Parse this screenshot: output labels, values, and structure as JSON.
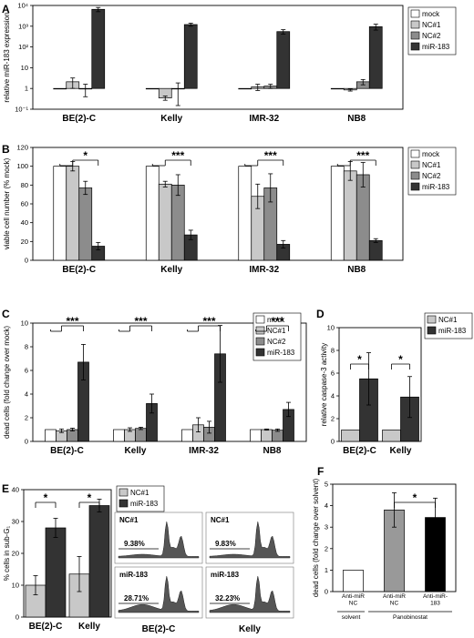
{
  "colors": {
    "mock": "#ffffff",
    "nc1": "#c8c8c8",
    "nc2": "#8c8c8c",
    "mir183": "#333333",
    "black": "#000000"
  },
  "chart_data": [
    {
      "panel": "A",
      "type": "bar",
      "ylabel": "relative miR-183 expression",
      "yscale": "log",
      "ylim": [
        0.1,
        10000
      ],
      "yticks": [
        "10⁴",
        "10³",
        "10²",
        "10",
        "1",
        "10⁻¹"
      ],
      "categories": [
        "BE(2)-C",
        "Kelly",
        "IMR-32",
        "NB8"
      ],
      "series": [
        {
          "name": "mock",
          "values": [
            1,
            1,
            1,
            1
          ],
          "err": [
            0,
            0,
            0,
            0
          ]
        },
        {
          "name": "NC#1",
          "values": [
            2.1,
            0.35,
            1.2,
            0.85
          ],
          "err": [
            1.1,
            0.08,
            0.4,
            0.1
          ]
        },
        {
          "name": "NC#2",
          "values": [
            1.0,
            1.0,
            1.3,
            2.1
          ],
          "err": [
            0.6,
            0.85,
            0.3,
            0.6
          ]
        },
        {
          "name": "miR-183",
          "values": [
            6500,
            1200,
            550,
            950
          ],
          "err": [
            1500,
            200,
            130,
            300
          ]
        }
      ]
    },
    {
      "panel": "B",
      "type": "bar",
      "ylabel": "viable cell number (% mock)",
      "ylim": [
        0,
        120
      ],
      "yticks": [
        "120",
        "100",
        "80",
        "60",
        "40",
        "20",
        "0"
      ],
      "categories": [
        "BE(2)-C",
        "Kelly",
        "IMR-32",
        "NB8"
      ],
      "series": [
        {
          "name": "mock",
          "values": [
            100,
            100,
            100,
            100
          ],
          "err": [
            0,
            0,
            0,
            0
          ]
        },
        {
          "name": "NC#1",
          "values": [
            100,
            81,
            68,
            95
          ],
          "err": [
            5,
            3,
            13,
            10
          ]
        },
        {
          "name": "NC#2",
          "values": [
            77,
            80,
            77,
            91
          ],
          "err": [
            7,
            11,
            15,
            13
          ]
        },
        {
          "name": "miR-183",
          "values": [
            15,
            27,
            17,
            21
          ],
          "err": [
            4,
            5,
            4,
            2
          ]
        }
      ],
      "significance": [
        "*",
        "***",
        "***",
        "***"
      ]
    },
    {
      "panel": "C",
      "type": "bar",
      "ylabel": "dead cells (fold change over mock)",
      "ylim": [
        0,
        10
      ],
      "yticks": [
        "10",
        "8",
        "6",
        "4",
        "2",
        "0"
      ],
      "categories": [
        "BE(2)-C",
        "Kelly",
        "IMR-32",
        "NB8"
      ],
      "series": [
        {
          "name": "mock",
          "values": [
            1,
            1,
            1,
            1
          ],
          "err": [
            0,
            0,
            0,
            0
          ]
        },
        {
          "name": "NC#1",
          "values": [
            0.9,
            1.0,
            1.4,
            1.0
          ],
          "err": [
            0.15,
            0.15,
            0.6,
            0.05
          ]
        },
        {
          "name": "NC#2",
          "values": [
            1.0,
            1.1,
            1.2,
            0.95
          ],
          "err": [
            0.12,
            0.1,
            0.5,
            0.1
          ]
        },
        {
          "name": "miR-183",
          "values": [
            6.7,
            3.2,
            7.4,
            2.7
          ],
          "err": [
            1.5,
            0.8,
            2.4,
            0.6
          ]
        }
      ],
      "significance": [
        "***",
        "***",
        "***",
        "***"
      ]
    },
    {
      "panel": "D",
      "type": "bar",
      "ylabel": "relative caspase-3 activity",
      "ylim": [
        0,
        10
      ],
      "yticks": [
        "10",
        "8",
        "6",
        "4",
        "2",
        "0"
      ],
      "categories": [
        "BE(2)-C",
        "Kelly"
      ],
      "series": [
        {
          "name": "NC#1",
          "values": [
            1,
            1
          ],
          "err": [
            0,
            0
          ]
        },
        {
          "name": "miR-183",
          "values": [
            5.5,
            3.9
          ],
          "err": [
            2.3,
            1.8
          ]
        }
      ],
      "significance": [
        "*",
        "*"
      ]
    },
    {
      "panel": "E",
      "type": "bar",
      "ylabel": "% cells in sub-G₁",
      "ylim": [
        0,
        40
      ],
      "yticks": [
        "40",
        "30",
        "20",
        "10",
        "0"
      ],
      "categories": [
        "BE(2)-C",
        "Kelly"
      ],
      "series": [
        {
          "name": "NC#1",
          "values": [
            10,
            13.5
          ],
          "err": [
            3,
            5.5
          ]
        },
        {
          "name": "miR-183",
          "values": [
            28,
            35
          ],
          "err": [
            3,
            2
          ]
        }
      ],
      "significance": [
        "*",
        "*"
      ],
      "histograms": {
        "column_labels": [
          "BE(2)-C",
          "Kelly"
        ],
        "cells": [
          {
            "label": "NC#1",
            "pct": "9.38%"
          },
          {
            "label": "NC#1",
            "pct": "9.83%"
          },
          {
            "label": "miR-183",
            "pct": "28.71%"
          },
          {
            "label": "miR-183",
            "pct": "32.23%"
          }
        ]
      }
    },
    {
      "panel": "F",
      "type": "bar",
      "ylabel": "dead cells (fold change over solvent)",
      "ylim": [
        0,
        5
      ],
      "yticks": [
        "5",
        "4",
        "3",
        "2",
        "1",
        "0"
      ],
      "categories": [
        "Anti-miR\nNC",
        "Anti-miR\nNC",
        "Anti-miR-\n183"
      ],
      "group_labels": [
        "solvent",
        "Panobinostat"
      ],
      "series": [
        {
          "name": "",
          "values": [
            1.0,
            3.8,
            3.45
          ],
          "err": [
            0,
            0.8,
            0.9
          ]
        }
      ],
      "significance": [
        "*"
      ]
    }
  ]
}
